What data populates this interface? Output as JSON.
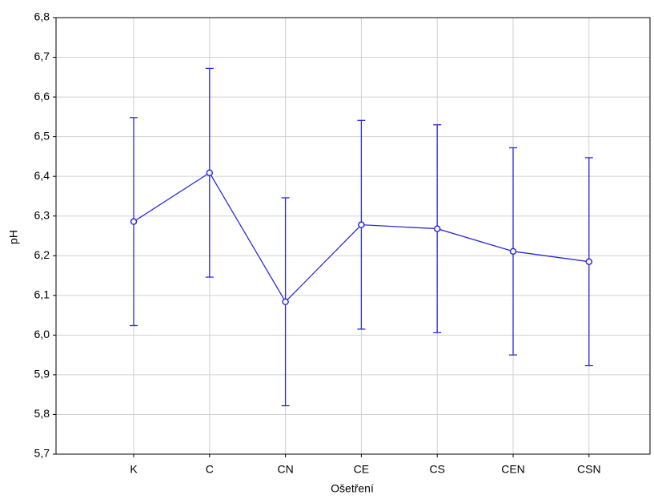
{
  "chart_data": {
    "type": "line",
    "xlabel": "Ošetření",
    "ylabel": "pH",
    "categories": [
      "K",
      "C",
      "CN",
      "CE",
      "CS",
      "CEN",
      "CSN"
    ],
    "series": [
      {
        "color": "#2b2bd9",
        "values": [
          6.286,
          6.409,
          6.084,
          6.278,
          6.268,
          6.211,
          6.185
        ],
        "errors": [
          0.262,
          0.263,
          0.262,
          0.263,
          0.262,
          0.261,
          0.262
        ]
      }
    ],
    "ylim": [
      5.7,
      6.8
    ],
    "yticks": [
      {
        "value": 5.7,
        "label": "5,7"
      },
      {
        "value": 5.8,
        "label": "5,8"
      },
      {
        "value": 5.9,
        "label": "5,9"
      },
      {
        "value": 6.0,
        "label": "6,0"
      },
      {
        "value": 6.1,
        "label": "6,1"
      },
      {
        "value": 6.2,
        "label": "6,2"
      },
      {
        "value": 6.3,
        "label": "6,3"
      },
      {
        "value": 6.4,
        "label": "6,4"
      },
      {
        "value": 6.5,
        "label": "6,5"
      },
      {
        "value": 6.6,
        "label": "6,6"
      },
      {
        "value": 6.7,
        "label": "6,7"
      },
      {
        "value": 6.8,
        "label": "6,8"
      }
    ],
    "grid": true
  }
}
